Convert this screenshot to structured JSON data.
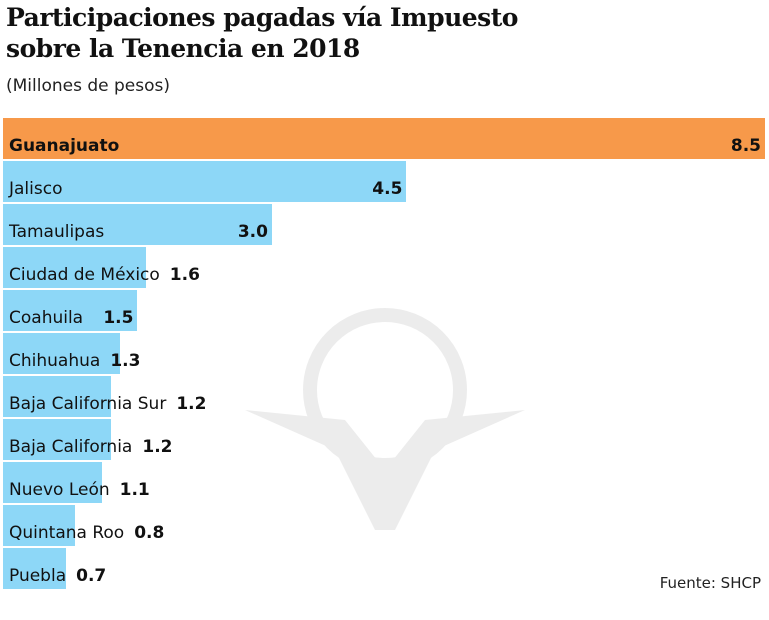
{
  "chart_data": {
    "type": "bar",
    "orientation": "horizontal",
    "title": "Participaciones pagadas vía Impuesto sobre la Tenencia en 2018",
    "title_lines": [
      "Participaciones pagadas vía Impuesto",
      "sobre la Tenencia en 2018"
    ],
    "subtitle": "(Millones de pesos)",
    "categories": [
      "Guanajuato",
      "Jalisco",
      "Tamaulipas",
      "Ciudad de México",
      "Coahuila",
      "Chihuahua",
      "Baja California Sur",
      "Baja California",
      "Nuevo León",
      "Quintana Roo",
      "Puebla"
    ],
    "values": [
      8.5,
      4.5,
      3.0,
      1.6,
      1.5,
      1.3,
      1.2,
      1.2,
      1.1,
      0.8,
      0.7
    ],
    "value_labels": [
      "8.5",
      "4.5",
      "3.0",
      "1.6",
      "1.5",
      "1.3",
      "1.2",
      "1.2",
      "1.1",
      "0.8",
      "0.7"
    ],
    "highlight": "Guanajuato",
    "xlim": [
      0,
      8.5
    ],
    "grid": false,
    "source": "Fuente: SHCP"
  },
  "colors": {
    "highlight": "#F7994A",
    "bar": "#8DD7F7"
  }
}
